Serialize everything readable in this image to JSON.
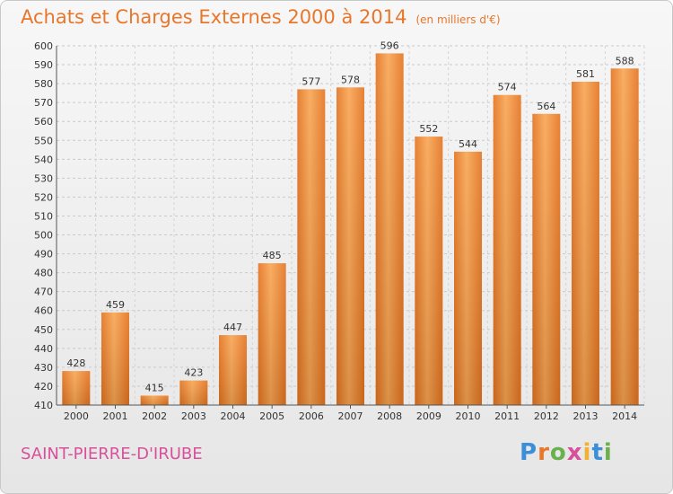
{
  "header": {
    "title": "Achats et Charges Externes 2000 à 2014",
    "subtitle": "(en milliers d'€)"
  },
  "footer": {
    "location": "SAINT-PIERRE-D'IRUBE",
    "logo_letters": [
      "P",
      "r",
      "o",
      "x",
      "i",
      "t",
      "i"
    ],
    "logo_colors": [
      "#3a8fd8",
      "#e8762b",
      "#6ab04c",
      "#d9509a",
      "#f2b134",
      "#3a8fd8",
      "#6ab04c"
    ]
  },
  "chart_data": {
    "type": "bar",
    "categories": [
      "2000",
      "2001",
      "2002",
      "2003",
      "2004",
      "2005",
      "2006",
      "2007",
      "2008",
      "2009",
      "2010",
      "2011",
      "2012",
      "2013",
      "2014"
    ],
    "values": [
      428,
      459,
      415,
      423,
      447,
      485,
      577,
      578,
      596,
      552,
      544,
      574,
      564,
      581,
      588
    ],
    "title": "Achats et Charges Externes 2000 à 2014",
    "subtitle": "(en milliers d'€)",
    "xlabel": "",
    "ylabel": "",
    "ylim": [
      410,
      600
    ],
    "ytick_step": 10,
    "grid": true,
    "bar_color": "#f08a2e"
  }
}
